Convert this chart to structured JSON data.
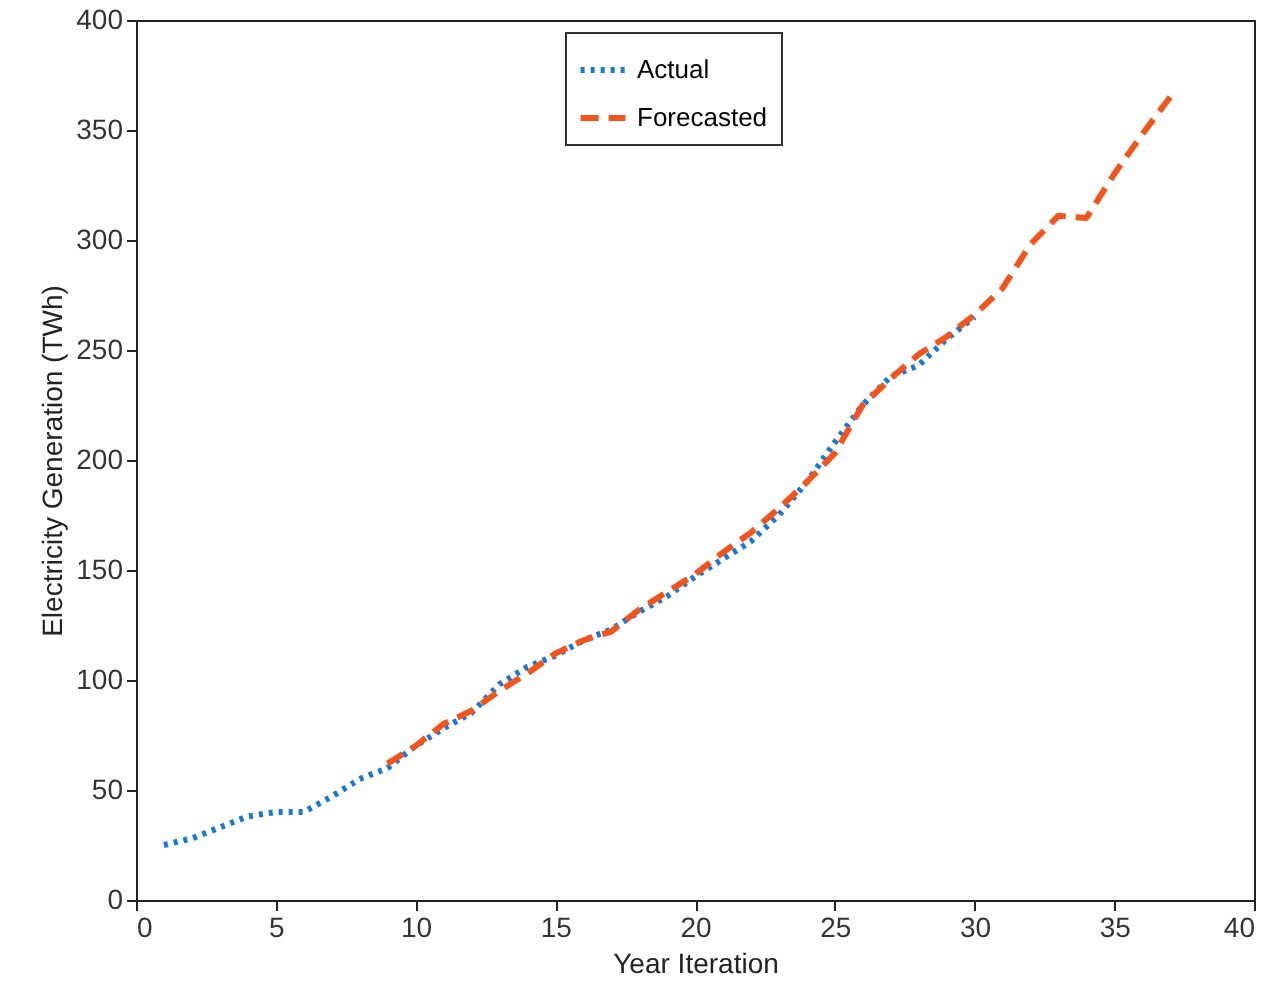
{
  "chart_data": {
    "type": "line",
    "xlabel": "Year Iteration",
    "ylabel": "Electricity Generation (TWh)",
    "xlim": [
      0,
      40
    ],
    "xticks": [
      0,
      5,
      10,
      15,
      20,
      25,
      30,
      35,
      40
    ],
    "ylim": [
      0,
      400
    ],
    "yticks": [
      0,
      50,
      100,
      150,
      200,
      250,
      300,
      350,
      400
    ],
    "grid": false,
    "legend": "top",
    "series": [
      {
        "name": "Actual",
        "color": "#1a78d4",
        "line_style": "dotted",
        "x": [
          1,
          2,
          3,
          4,
          5,
          6,
          7,
          8,
          9,
          10,
          11,
          12,
          13,
          14,
          15,
          16,
          17,
          18,
          19,
          20,
          21,
          22,
          23,
          24,
          25,
          26,
          27,
          28,
          29,
          30
        ],
        "values": [
          25,
          28,
          33,
          38,
          40,
          40,
          47,
          55,
          60,
          70,
          78,
          85,
          98,
          106,
          111,
          118,
          123,
          131,
          138,
          147,
          155,
          163,
          175,
          190,
          208,
          225,
          238,
          243,
          255,
          265
        ]
      },
      {
        "name": "Forecasted",
        "color": "#f2541b",
        "line_style": "dashed",
        "x": [
          9,
          10,
          11,
          12,
          13,
          14,
          15,
          16,
          17,
          18,
          19,
          20,
          21,
          22,
          23,
          24,
          25,
          26,
          27,
          28,
          29,
          30,
          31,
          32,
          33,
          34,
          35,
          36,
          37
        ],
        "values": [
          62,
          70,
          80,
          86,
          95,
          103,
          112,
          118,
          122,
          132,
          140,
          148,
          158,
          167,
          178,
          190,
          203,
          225,
          237,
          248,
          256,
          266,
          278,
          298,
          311,
          310,
          330,
          348,
          365
        ]
      }
    ]
  }
}
